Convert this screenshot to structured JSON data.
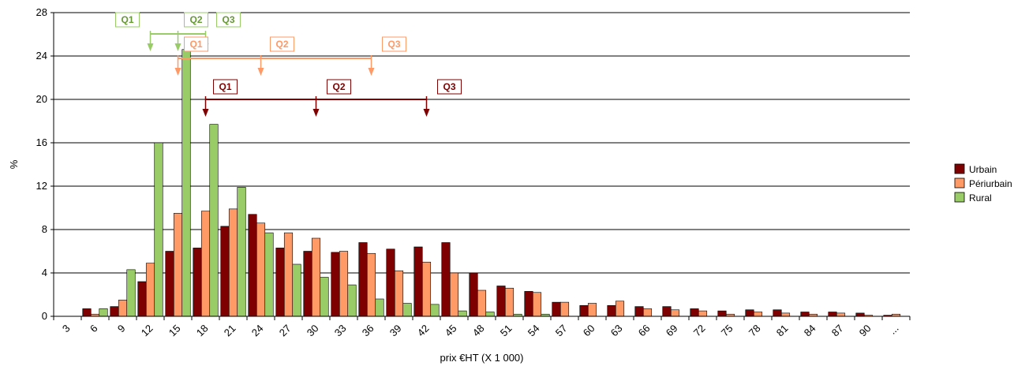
{
  "chart_data": {
    "type": "bar",
    "categories": [
      "3",
      "6",
      "9",
      "12",
      "15",
      "18",
      "21",
      "24",
      "27",
      "30",
      "33",
      "36",
      "39",
      "42",
      "45",
      "48",
      "51",
      "54",
      "57",
      "60",
      "63",
      "66",
      "69",
      "72",
      "75",
      "78",
      "81",
      "84",
      "87",
      "90",
      "..."
    ],
    "series": [
      {
        "name": "Urbain",
        "color": "#7f0000",
        "values": [
          0,
          0.7,
          0.9,
          3.2,
          6.0,
          6.3,
          8.3,
          9.4,
          6.3,
          6.0,
          5.9,
          6.8,
          6.2,
          6.4,
          6.8,
          4.0,
          2.8,
          2.3,
          1.3,
          1.0,
          1.0,
          0.9,
          0.9,
          0.7,
          0.5,
          0.6,
          0.6,
          0.4,
          0.4,
          0.3,
          0.1
        ]
      },
      {
        "name": "Périurbain",
        "color": "#ff9966",
        "values": [
          0,
          0.2,
          1.5,
          4.9,
          9.5,
          9.7,
          9.9,
          8.6,
          7.7,
          7.2,
          6.0,
          5.8,
          4.2,
          5.0,
          4.0,
          2.4,
          2.6,
          2.2,
          1.3,
          1.2,
          1.4,
          0.7,
          0.6,
          0.5,
          0.2,
          0.4,
          0.3,
          0.2,
          0.3,
          0.1,
          0.2
        ]
      },
      {
        "name": "Rural",
        "color": "#99cc66",
        "values": [
          0,
          0.7,
          4.3,
          16.0,
          24.6,
          17.7,
          11.9,
          7.7,
          4.8,
          3.6,
          2.9,
          1.6,
          1.2,
          1.1,
          0.5,
          0.4,
          0.2,
          0.2,
          0,
          0,
          0,
          0,
          0,
          0,
          0,
          0,
          0,
          0,
          0,
          0,
          0
        ]
      }
    ],
    "xlabel": "prix €HT (X 1 000)",
    "ylabel": "%",
    "ylim": [
      0,
      28
    ],
    "yticks": [
      0,
      4,
      8,
      12,
      16,
      20,
      24,
      28
    ],
    "grid": true,
    "legend": "right",
    "quartile_markers": [
      {
        "series": "Rural",
        "color": "#99cc66",
        "bg": "#ffffff",
        "label_color": "#669933",
        "markers": [
          {
            "label": "Q1",
            "x": 12
          },
          {
            "label": "Q2",
            "x": 15
          },
          {
            "label": "Q3",
            "x": 18
          }
        ]
      },
      {
        "series": "Périurbain",
        "color": "#ff9966",
        "bg": "#ffffff",
        "label_color": "#ff9966",
        "markers": [
          {
            "label": "Q1",
            "x": 15
          },
          {
            "label": "Q2",
            "x": 24
          },
          {
            "label": "Q3",
            "x": 36
          }
        ]
      },
      {
        "series": "Urbain",
        "color": "#7f0000",
        "bg": "#ffffff",
        "label_color": "#7f0000",
        "markers": [
          {
            "label": "Q1",
            "x": 18
          },
          {
            "label": "Q2",
            "x": 30
          },
          {
            "label": "Q3",
            "x": 42
          }
        ]
      }
    ]
  }
}
